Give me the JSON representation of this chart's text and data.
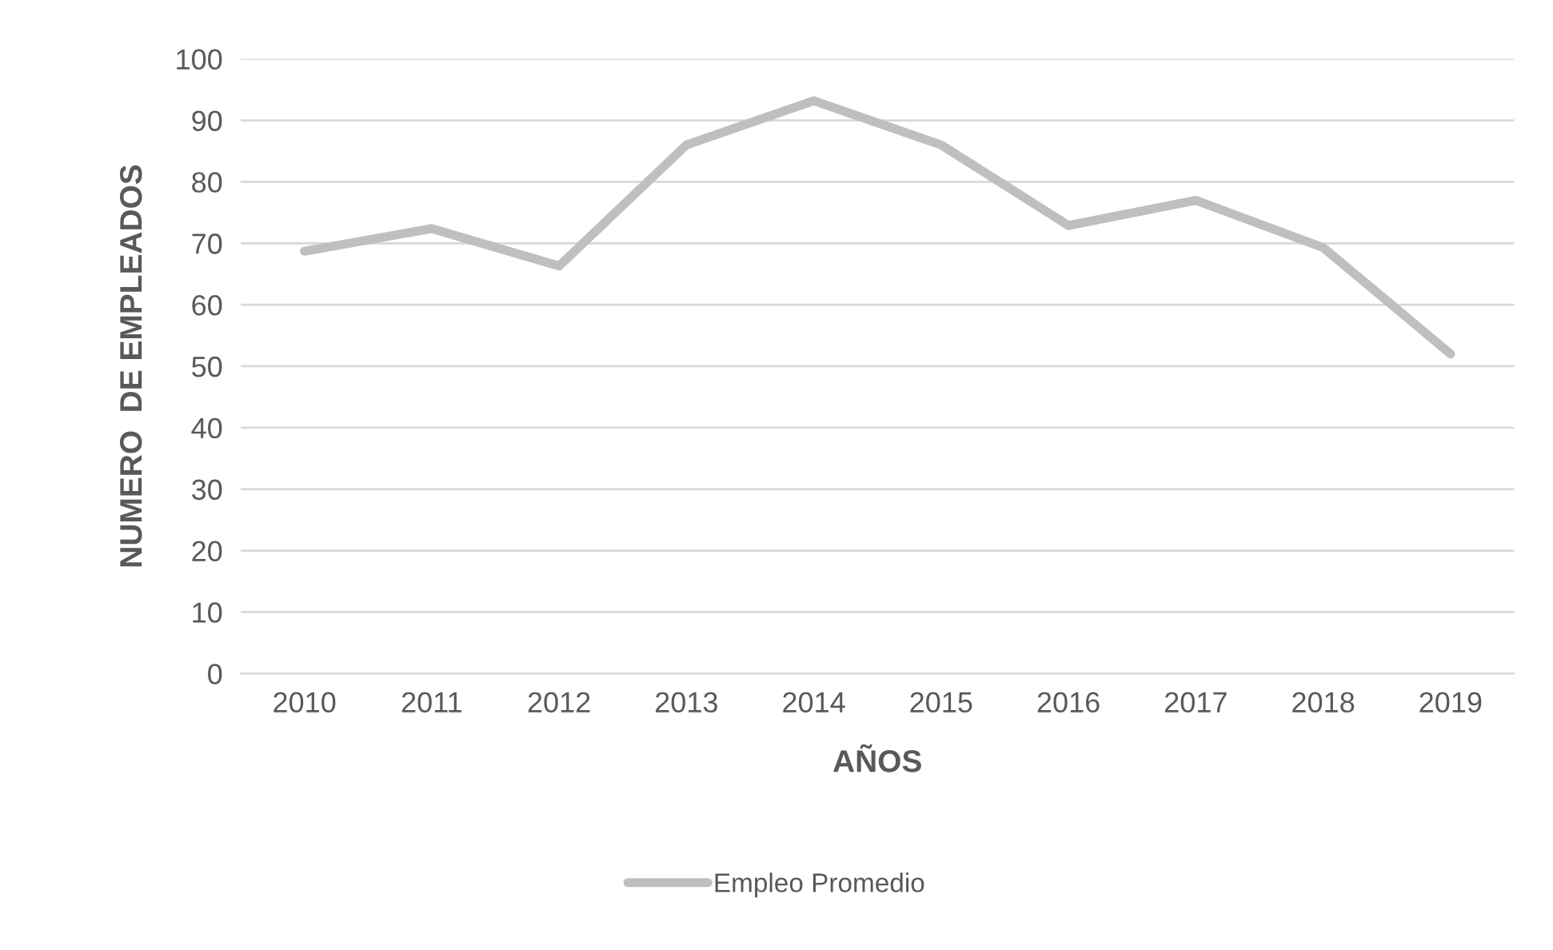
{
  "chart_data": {
    "type": "line",
    "xlabel": "AÑOS",
    "ylabel": "NUMERO  DE EMPLEADOS",
    "categories": [
      "2010",
      "2011",
      "2012",
      "2013",
      "2014",
      "2015",
      "2016",
      "2017",
      "2018",
      "2019"
    ],
    "series": [
      {
        "name": "Empleo Promedio",
        "color": "#bfbfbf",
        "values": [
          68.7,
          72.4,
          66.3,
          86,
          93.2,
          86,
          72.9,
          77,
          69.3,
          52
        ]
      }
    ],
    "ylim": [
      0,
      100
    ],
    "yticks": [
      0,
      10,
      20,
      30,
      40,
      50,
      60,
      70,
      80,
      90,
      100
    ],
    "grid": "y",
    "legend": "bottom",
    "marker": "none",
    "line_style": "solid"
  }
}
